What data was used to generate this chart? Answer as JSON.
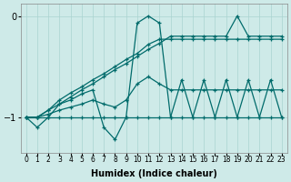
{
  "xlabel": "Humidex (Indice chaleur)",
  "bg_color": "#ceeae8",
  "grid_color": "#aad4d0",
  "line_color": "#006b6b",
  "x_values": [
    0,
    1,
    2,
    3,
    4,
    5,
    6,
    7,
    8,
    9,
    10,
    11,
    12,
    13,
    14,
    15,
    16,
    17,
    18,
    19,
    20,
    21,
    22,
    23
  ],
  "ylim": [
    -1.35,
    0.12
  ],
  "yticks": [
    -1,
    0
  ],
  "upper_envelope": [
    -1.0,
    -1.0,
    -0.93,
    -0.87,
    -0.8,
    -0.73,
    -0.67,
    -0.6,
    -0.53,
    -0.47,
    -0.4,
    -0.33,
    -0.27,
    -0.2,
    -0.2,
    -0.2,
    -0.2,
    -0.2,
    -0.2,
    0.0,
    -0.2,
    -0.2,
    -0.2,
    -0.2
  ],
  "lower_envelope": [
    -1.0,
    -1.0,
    -1.0,
    -1.0,
    -1.0,
    -1.0,
    -1.0,
    -1.0,
    -1.0,
    -1.0,
    -1.0,
    -1.0,
    -1.0,
    -1.0,
    -1.0,
    -1.0,
    -1.0,
    -1.0,
    -1.0,
    -1.0,
    -1.0,
    -1.0,
    -1.0,
    -1.0
  ],
  "smooth_upper": [
    -1.0,
    -1.0,
    -0.93,
    -0.83,
    -0.76,
    -0.7,
    -0.63,
    -0.57,
    -0.5,
    -0.43,
    -0.37,
    -0.28,
    -0.23,
    -0.23,
    -0.23,
    -0.23,
    -0.23,
    -0.23,
    -0.23,
    -0.23,
    -0.23,
    -0.23,
    -0.23,
    -0.23
  ],
  "smooth_lower": [
    -1.0,
    -1.0,
    -0.97,
    -0.93,
    -0.9,
    -0.87,
    -0.83,
    -0.87,
    -0.9,
    -0.83,
    -0.67,
    -0.6,
    -0.67,
    -0.73,
    -0.73,
    -0.73,
    -0.73,
    -0.73,
    -0.73,
    -0.73,
    -0.73,
    -0.73,
    -0.73,
    -0.73
  ],
  "zigzag": [
    -1.0,
    -1.1,
    -1.0,
    -0.87,
    -0.83,
    -0.77,
    -0.73,
    -1.1,
    -1.22,
    -1.0,
    -0.07,
    0.0,
    -0.07,
    -1.0,
    -0.63,
    -1.0,
    -0.63,
    -1.0,
    -0.63,
    -1.0,
    -0.63,
    -1.0,
    -0.63,
    -1.0
  ]
}
